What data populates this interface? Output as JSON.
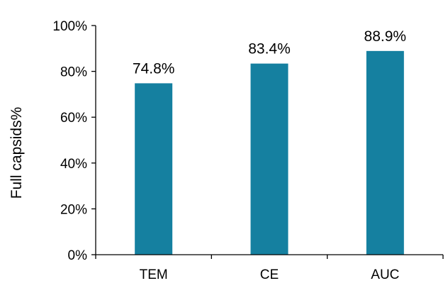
{
  "chart_data": {
    "type": "bar",
    "categories": [
      "TEM",
      "CE",
      "AUC"
    ],
    "values": [
      74.8,
      83.4,
      88.9
    ],
    "data_labels": [
      "74.8%",
      "83.4%",
      "88.9%"
    ],
    "title": "",
    "xlabel": "",
    "ylabel": "Full capsids%",
    "ylim": [
      0,
      100
    ],
    "y_ticks": [
      0,
      20,
      40,
      60,
      80,
      100
    ],
    "y_tick_labels": [
      "0%",
      "20%",
      "40%",
      "60%",
      "80%",
      "100%"
    ],
    "grid": false,
    "legend": "none",
    "bar_color": "#1580a0",
    "axis_color": "#000000"
  }
}
